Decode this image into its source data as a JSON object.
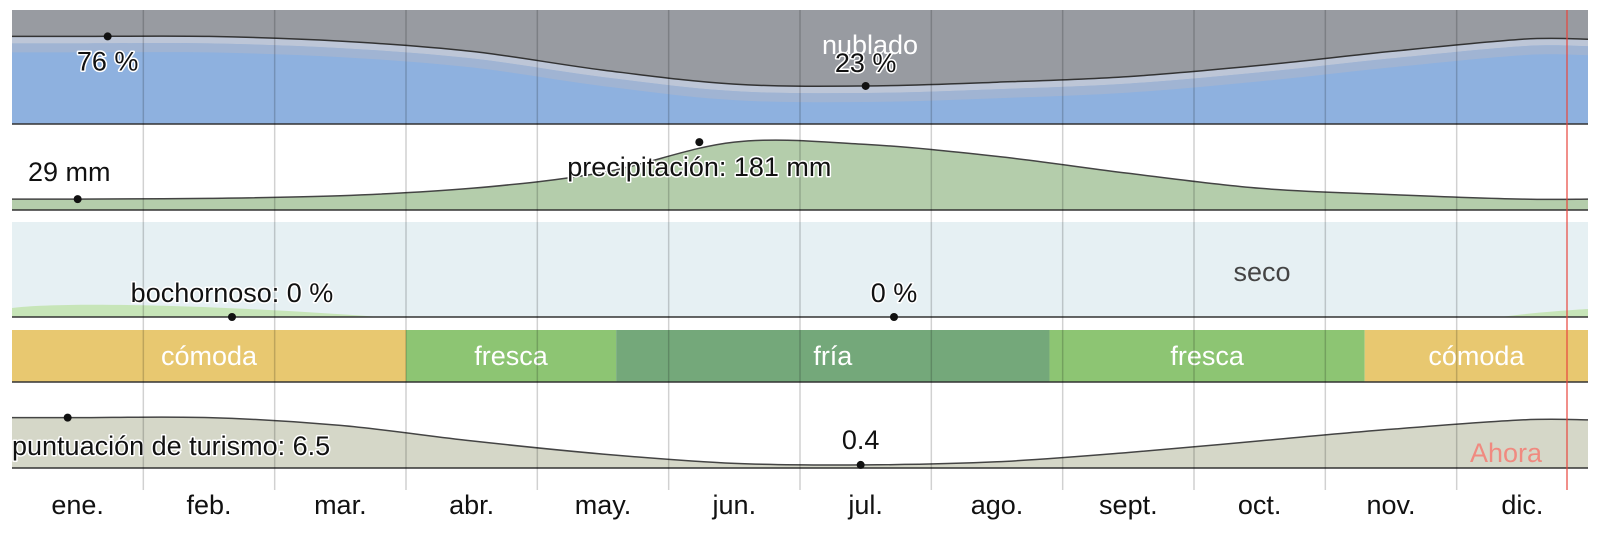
{
  "chart_data": [
    {
      "type": "area",
      "label_nublado": "nublado",
      "x": [
        "ene.",
        "feb.",
        "mar.",
        "abr.",
        "may.",
        "jun.",
        "jul.",
        "ago.",
        "sept.",
        "oct.",
        "nov.",
        "dic."
      ],
      "values": [
        76,
        76,
        71,
        60,
        40,
        25,
        23,
        27,
        33,
        45,
        60,
        73
      ],
      "peak_label": "76 %",
      "low_label": "23 %",
      "ylim": [
        0,
        100
      ],
      "colors": {
        "clear": "#8eb1df",
        "cloudy": "#989ba1"
      }
    },
    {
      "type": "area",
      "x": [
        "ene.",
        "feb.",
        "mar.",
        "abr.",
        "may.",
        "jun.",
        "jul.",
        "ago.",
        "sept.",
        "oct.",
        "nov.",
        "dic."
      ],
      "values": [
        29,
        31,
        38,
        58,
        100,
        181,
        175,
        143,
        98,
        58,
        41,
        29
      ],
      "min_label": "29 mm",
      "max_label": "precipitación: 181 mm",
      "ylim": [
        0,
        200
      ],
      "color": "#b4cdab"
    },
    {
      "type": "area",
      "x": [
        "ene.",
        "feb.",
        "mar.",
        "abr.",
        "may.",
        "jun.",
        "jul.",
        "ago.",
        "sept.",
        "oct.",
        "nov.",
        "dic."
      ],
      "values": [
        0,
        0,
        0,
        0,
        0,
        0,
        0,
        0,
        0,
        0,
        0,
        0
      ],
      "label_seco": "seco",
      "start_label": "bochornoso: 0 %",
      "mid_label": "0 %",
      "colors": {
        "dry": "#e6f0f3"
      }
    },
    {
      "type": "bar",
      "segments": [
        {
          "label": "cómoda",
          "from": 0,
          "to": 3.0,
          "color": "#e8c870"
        },
        {
          "label": "fresca",
          "from": 3.0,
          "to": 4.6,
          "color": "#8dc573"
        },
        {
          "label": "fría",
          "from": 4.6,
          "to": 7.9,
          "color": "#74a87a"
        },
        {
          "label": "fresca",
          "from": 7.9,
          "to": 10.3,
          "color": "#8dc573"
        },
        {
          "label": "cómoda",
          "from": 10.3,
          "to": 12,
          "color": "#e8c870"
        }
      ]
    },
    {
      "type": "area",
      "x": [
        "ene.",
        "feb.",
        "mar.",
        "abr.",
        "may.",
        "jun.",
        "jul.",
        "ago.",
        "sept.",
        "oct.",
        "nov.",
        "dic."
      ],
      "values": [
        6.5,
        6.5,
        5.5,
        3.5,
        1.8,
        0.6,
        0.4,
        0.8,
        2.0,
        3.5,
        5.0,
        6.2
      ],
      "max_label": "puntuación de turismo: 6.5",
      "min_label": "0.4",
      "ylim": [
        0,
        8
      ],
      "color": "#d5d7c8"
    }
  ],
  "months": [
    "ene.",
    "feb.",
    "mar.",
    "abr.",
    "may.",
    "jun.",
    "jul.",
    "ago.",
    "sept.",
    "oct.",
    "nov.",
    "dic."
  ],
  "now_label": "Ahora"
}
